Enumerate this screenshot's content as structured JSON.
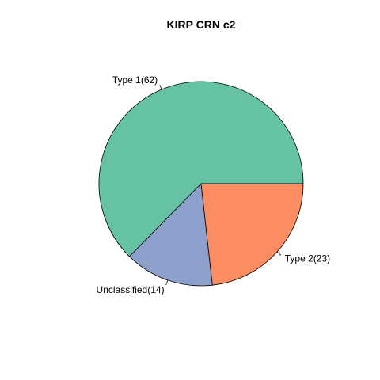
{
  "chart_data": {
    "type": "pie",
    "title": "KIRP CRN c2",
    "slices": [
      {
        "label": "Type 1(62)",
        "name": "Type 1",
        "value": 62,
        "color": "#66C2A5"
      },
      {
        "label": "Unclassified(14)",
        "name": "Unclassified",
        "value": 14,
        "color": "#8DA0CB"
      },
      {
        "label": "Type 2(23)",
        "name": "Type 2",
        "value": 23,
        "color": "#FC8D62"
      }
    ],
    "start_angle_deg": 0,
    "direction": "counterclockwise"
  }
}
